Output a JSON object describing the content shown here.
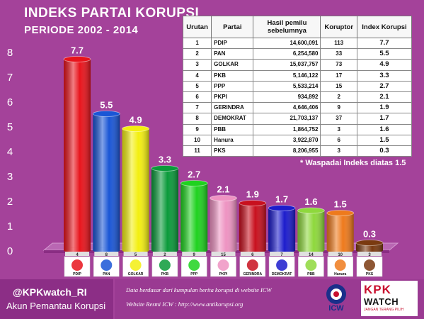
{
  "header": {
    "title": "INDEKS PARTAI KORUPSI",
    "subtitle": "PERIODE 2002 - 2014"
  },
  "chart_data": {
    "type": "bar",
    "title": "INDEKS PARTAI KORUPSI",
    "subtitle": "PERIODE 2002 - 2014",
    "categories": [
      "PDIP",
      "PAN",
      "GOLKAR",
      "PKB",
      "PPP",
      "PKPI",
      "GERINDRA",
      "DEMOKRAT",
      "PBB",
      "Hanura",
      "PKS"
    ],
    "party_numbers": [
      "4",
      "8",
      "5",
      "2",
      "9",
      "15",
      "6",
      "7",
      "14",
      "10",
      "3"
    ],
    "values": [
      7.7,
      5.5,
      4.9,
      3.3,
      2.7,
      2.1,
      1.9,
      1.7,
      1.6,
      1.5,
      0.3
    ],
    "value_labels": [
      "7.7",
      "5.5",
      "4.9",
      "3.3",
      "2.7",
      "2.1",
      "1.9",
      "1.7",
      "1.6",
      "1.5",
      "0.3"
    ],
    "colors": [
      "#e8141c",
      "#1a56d6",
      "#f3ef10",
      "#0a9a3a",
      "#1fd21f",
      "#ee93c2",
      "#c8101e",
      "#1c1ccc",
      "#8ed83c",
      "#ee7a1c",
      "#7a3a10"
    ],
    "ylim": [
      0,
      8
    ],
    "yticks": [
      "0",
      "1",
      "2",
      "3",
      "4",
      "5",
      "6",
      "7",
      "8"
    ],
    "xlabel": "",
    "ylabel": "",
    "grid": false,
    "legend": "none"
  },
  "table": {
    "headers": [
      "Urutan",
      "Partai",
      "Hasil pemilu sebelumnya",
      "Koruptor",
      "Index Korupsi"
    ],
    "rows": [
      [
        "1",
        "PDIP",
        "14,600,091",
        "113",
        "7.7"
      ],
      [
        "2",
        "PAN",
        "6,254,580",
        "33",
        "5.5"
      ],
      [
        "3",
        "GOLKAR",
        "15,037,757",
        "73",
        "4.9"
      ],
      [
        "4",
        "PKB",
        "5,146,122",
        "17",
        "3.3"
      ],
      [
        "5",
        "PPP",
        "5,533,214",
        "15",
        "2.7"
      ],
      [
        "6",
        "PKPI",
        "934,892",
        "2",
        "2.1"
      ],
      [
        "7",
        "GERINDRA",
        "4,646,406",
        "9",
        "1.9"
      ],
      [
        "8",
        "DEMOKRAT",
        "21,703,137",
        "37",
        "1.7"
      ],
      [
        "9",
        "PBB",
        "1,864,752",
        "3",
        "1.6"
      ],
      [
        "10",
        "Hanura",
        "3,922,870",
        "6",
        "1.5"
      ],
      [
        "11",
        "PKS",
        "8,206,955",
        "3",
        "0.3"
      ]
    ]
  },
  "warning": "* Waspadai Indeks diatas 1.5",
  "footer": {
    "handle": "@KPKwatch_RI",
    "tagline": "Akun Pemantau Korupsi",
    "info_line1": "Data berdasar dari kumpulan berita korupsi di website ICW",
    "info_line2": "Website Resmi ICW :   http://www.antikorupsi.org",
    "icw_logo": "ICW",
    "kpk_logo_top": "KPK",
    "kpk_logo_bottom": "WATCH",
    "kpk_logo_slogan": "JANGAN TERANG PILIH"
  }
}
